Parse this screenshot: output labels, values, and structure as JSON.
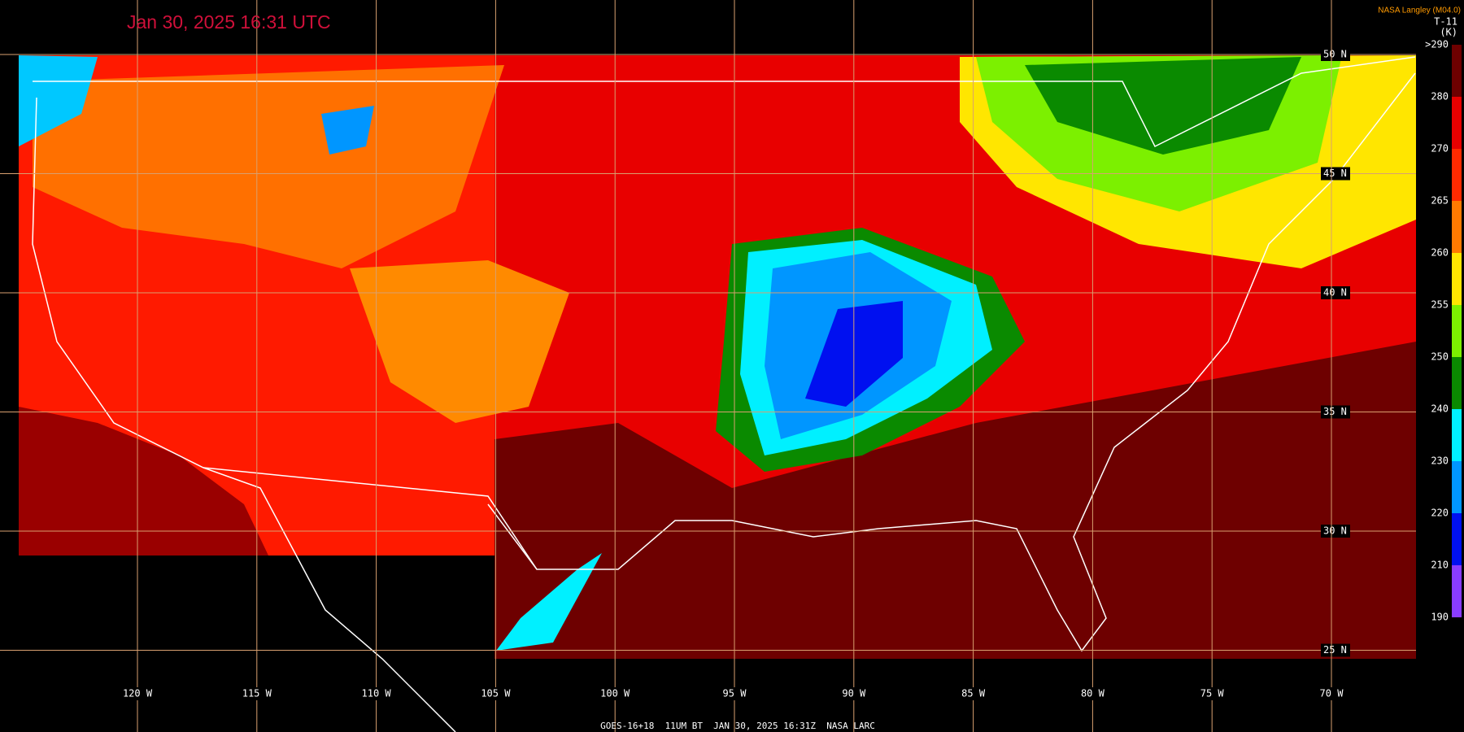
{
  "header": {
    "timestamp": "Jan 30, 2025 16:31 UTC",
    "credit": "NASA Langley (M04.0)"
  },
  "colorbar": {
    "title": "T-11",
    "unit": "(K)",
    "labels": [
      ">290",
      "280",
      "270",
      "265",
      "260",
      "255",
      "250",
      "240",
      "230",
      "220",
      "210",
      "190"
    ],
    "colors": [
      "#6e0000",
      "#e80000",
      "#ff2a00",
      "#ff7a00",
      "#ffe600",
      "#7cf000",
      "#0a8a00",
      "#00f0ff",
      "#0096ff",
      "#0010f0",
      "#8a3cff"
    ]
  },
  "latitudes": [
    "50 N",
    "45 N",
    "40 N",
    "35 N",
    "30 N",
    "25 N"
  ],
  "longitudes": [
    "120 W",
    "115 W",
    "110 W",
    "105 W",
    "100 W",
    "95 W",
    "90 W",
    "85 W",
    "80 W",
    "75 W",
    "70 W"
  ],
  "footer": "GOES-16+18  11UM BT  JAN 30, 2025 16:31Z  NASA LARC"
}
